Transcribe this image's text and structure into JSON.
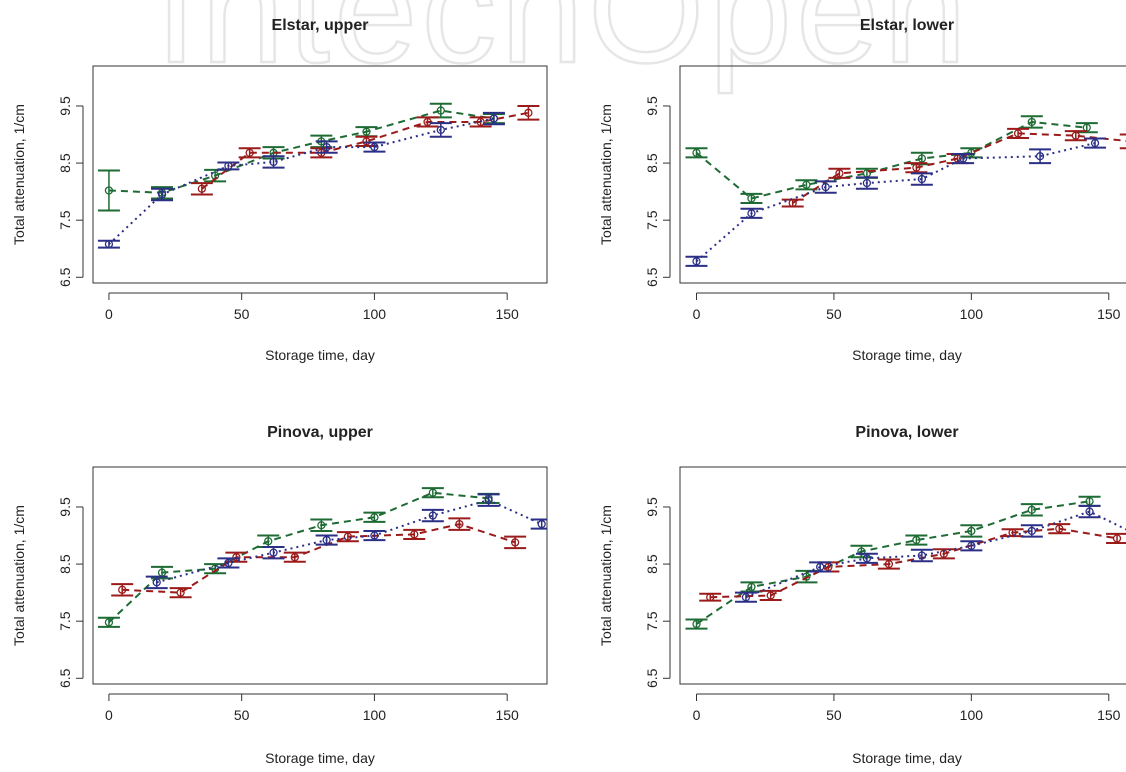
{
  "watermark": "IntechOpen",
  "colors": {
    "green": "#1e6b34",
    "red": "#9b1b1b",
    "blue": "#2b2f86"
  },
  "chart_data": [
    {
      "type": "scatter",
      "title": "Elstar, upper",
      "xlabel": "Storage time, day",
      "ylabel": "Total attenuation, 1/cm",
      "xlim": [
        -6,
        165
      ],
      "ylim": [
        6.4,
        10.2
      ],
      "xticks": [
        "0",
        "50",
        "100",
        "150"
      ],
      "yticks": [
        "6.5",
        "7.5",
        "8.5",
        "9.5"
      ],
      "series": [
        {
          "color": "green",
          "line": "dashed",
          "x": [
            0,
            20,
            40,
            62,
            80,
            97,
            125,
            145
          ],
          "y": [
            8.02,
            7.98,
            8.28,
            8.68,
            8.88,
            9.05,
            9.42,
            9.28
          ],
          "err": [
            0.35,
            0.1,
            0.1,
            0.1,
            0.1,
            0.08,
            0.12,
            0.08
          ]
        },
        {
          "color": "red",
          "line": "dashed",
          "x": [
            35,
            53,
            80,
            97,
            120,
            140,
            158
          ],
          "y": [
            8.05,
            8.68,
            8.68,
            8.88,
            9.22,
            9.22,
            9.38
          ],
          "err": [
            0.1,
            0.08,
            0.08,
            0.08,
            0.08,
            0.08,
            0.12
          ]
        },
        {
          "color": "blue",
          "line": "dotted",
          "x": [
            0,
            20,
            45,
            62,
            82,
            100,
            125,
            145
          ],
          "y": [
            7.08,
            7.95,
            8.45,
            8.52,
            8.78,
            8.78,
            9.08,
            9.28
          ],
          "err": [
            0.06,
            0.1,
            0.06,
            0.1,
            0.1,
            0.08,
            0.12,
            0.1
          ]
        }
      ]
    },
    {
      "type": "scatter",
      "title": "Elstar, lower",
      "xlabel": "Storage time, day",
      "ylabel": "Total attenuation, 1/cm",
      "xlim": [
        -6,
        165
      ],
      "ylim": [
        6.4,
        10.2
      ],
      "xticks": [
        "0",
        "50",
        "100",
        "150"
      ],
      "yticks": [
        "6.5",
        "7.5",
        "8.5",
        "9.5"
      ],
      "series": [
        {
          "color": "green",
          "line": "dashed",
          "x": [
            0,
            20,
            40,
            62,
            82,
            100,
            122,
            142
          ],
          "y": [
            8.68,
            7.88,
            8.12,
            8.32,
            8.58,
            8.68,
            9.22,
            9.12
          ],
          "err": [
            0.08,
            0.08,
            0.08,
            0.08,
            0.1,
            0.08,
            0.1,
            0.08
          ]
        },
        {
          "color": "red",
          "line": "dashed",
          "x": [
            35,
            52,
            80,
            95,
            117,
            138,
            158
          ],
          "y": [
            7.8,
            8.32,
            8.42,
            8.58,
            9.02,
            8.98,
            8.88
          ],
          "err": [
            0.06,
            0.08,
            0.08,
            0.08,
            0.08,
            0.08,
            0.12
          ]
        },
        {
          "color": "blue",
          "line": "dotted",
          "x": [
            0,
            20,
            47,
            62,
            82,
            97,
            125,
            145
          ],
          "y": [
            6.78,
            7.62,
            8.08,
            8.15,
            8.22,
            8.58,
            8.62,
            8.85
          ],
          "err": [
            0.08,
            0.08,
            0.1,
            0.1,
            0.1,
            0.08,
            0.12,
            0.08
          ]
        }
      ]
    },
    {
      "type": "scatter",
      "title": "Pinova, upper",
      "xlabel": "Storage time, day",
      "ylabel": "Total attenuation, 1/cm",
      "xlim": [
        -6,
        165
      ],
      "ylim": [
        6.4,
        10.2
      ],
      "xticks": [
        "0",
        "50",
        "100",
        "150"
      ],
      "yticks": [
        "6.5",
        "7.5",
        "8.5",
        "9.5"
      ],
      "series": [
        {
          "color": "green",
          "line": "dashed",
          "x": [
            0,
            20,
            40,
            60,
            80,
            100,
            122,
            143
          ],
          "y": [
            7.48,
            8.35,
            8.42,
            8.9,
            9.18,
            9.32,
            9.75,
            9.65
          ],
          "err": [
            0.08,
            0.1,
            0.08,
            0.1,
            0.1,
            0.08,
            0.08,
            0.08
          ]
        },
        {
          "color": "red",
          "line": "dashed",
          "x": [
            5,
            27,
            48,
            70,
            90,
            115,
            132,
            153
          ],
          "y": [
            8.05,
            8.0,
            8.62,
            8.62,
            8.98,
            9.02,
            9.2,
            8.88
          ],
          "err": [
            0.1,
            0.08,
            0.08,
            0.08,
            0.08,
            0.08,
            0.1,
            0.1
          ]
        },
        {
          "color": "blue",
          "line": "dotted",
          "x": [
            18,
            45,
            62,
            82,
            100,
            122,
            143,
            163
          ],
          "y": [
            8.18,
            8.52,
            8.7,
            8.92,
            9.0,
            9.35,
            9.62,
            9.2
          ],
          "err": [
            0.1,
            0.08,
            0.1,
            0.08,
            0.08,
            0.1,
            0.1,
            0.08
          ]
        }
      ]
    },
    {
      "type": "scatter",
      "title": "Pinova, lower",
      "xlabel": "Storage time, day",
      "ylabel": "Total attenuation, 1/cm",
      "xlim": [
        -6,
        165
      ],
      "ylim": [
        6.4,
        10.2
      ],
      "xticks": [
        "0",
        "50",
        "100",
        "150"
      ],
      "yticks": [
        "6.5",
        "7.5",
        "8.5",
        "9.5"
      ],
      "series": [
        {
          "color": "green",
          "line": "dashed",
          "x": [
            0,
            20,
            40,
            60,
            80,
            100,
            122,
            143
          ],
          "y": [
            7.45,
            8.1,
            8.28,
            8.72,
            8.92,
            9.08,
            9.45,
            9.6
          ],
          "err": [
            0.08,
            0.08,
            0.1,
            0.1,
            0.08,
            0.1,
            0.1,
            0.08
          ]
        },
        {
          "color": "red",
          "line": "dashed",
          "x": [
            5,
            27,
            48,
            70,
            90,
            115,
            132,
            153
          ],
          "y": [
            7.92,
            7.95,
            8.45,
            8.5,
            8.68,
            9.05,
            9.12,
            8.95
          ],
          "err": [
            0.06,
            0.08,
            0.08,
            0.08,
            0.08,
            0.06,
            0.08,
            0.08
          ]
        },
        {
          "color": "blue",
          "line": "dotted",
          "x": [
            18,
            45,
            62,
            82,
            100,
            122,
            143,
            163
          ],
          "y": [
            7.92,
            8.45,
            8.6,
            8.65,
            8.82,
            9.08,
            9.42,
            8.95
          ],
          "err": [
            0.08,
            0.08,
            0.08,
            0.1,
            0.08,
            0.1,
            0.1,
            0.08
          ]
        }
      ]
    }
  ]
}
